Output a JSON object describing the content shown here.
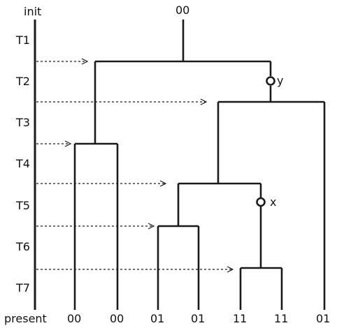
{
  "axis": {
    "top_label": "init",
    "bottom_label": "present",
    "time_labels": [
      "T1",
      "T2",
      "T3",
      "T4",
      "T5",
      "T6",
      "T7"
    ]
  },
  "root_label": "00",
  "leaf_labels": [
    "00",
    "00",
    "01",
    "01",
    "11",
    "11",
    "01"
  ],
  "mutation_labels": [
    "y",
    "x"
  ]
}
